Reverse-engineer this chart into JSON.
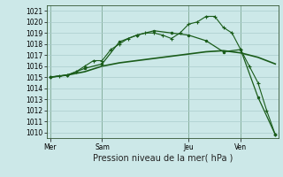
{
  "title": "Pression niveau de la mer( hPa )",
  "bg_color": "#cce8e8",
  "grid_color": "#aacccc",
  "line_color": "#1a5c1a",
  "ylim": [
    1009.5,
    1021.5
  ],
  "yticks": [
    1010,
    1011,
    1012,
    1013,
    1014,
    1015,
    1016,
    1017,
    1018,
    1019,
    1020,
    1021
  ],
  "xlim": [
    -0.2,
    13.2
  ],
  "day_labels": [
    "Mer",
    "Sam",
    "Jeu",
    "Ven"
  ],
  "day_positions": [
    0,
    3,
    8,
    11
  ],
  "line1_x": [
    0,
    0.5,
    1,
    1.5,
    2,
    2.5,
    3,
    3.5,
    4,
    4.5,
    5,
    5.5,
    6,
    6.5,
    7,
    7.5,
    8,
    8.5,
    9,
    9.5,
    10,
    10.5,
    11,
    11.5,
    12,
    12.5,
    13
  ],
  "line1_y": [
    1015.0,
    1015.1,
    1015.2,
    1015.5,
    1016.0,
    1016.5,
    1016.5,
    1017.5,
    1018.0,
    1018.5,
    1018.8,
    1019.0,
    1019.0,
    1018.8,
    1018.5,
    1019.0,
    1019.8,
    1020.0,
    1020.5,
    1020.5,
    1019.5,
    1019.0,
    1017.5,
    1016.0,
    1014.5,
    1012.0,
    1009.8
  ],
  "line2_x": [
    0,
    1,
    2,
    3,
    4,
    5,
    6,
    7,
    8,
    9,
    10,
    11,
    12,
    13
  ],
  "line2_y": [
    1015.0,
    1015.2,
    1015.8,
    1016.2,
    1018.2,
    1018.8,
    1019.2,
    1019.0,
    1018.8,
    1018.3,
    1017.3,
    1017.5,
    1013.2,
    1009.8
  ],
  "line3_x": [
    0,
    1,
    2,
    3,
    4,
    5,
    6,
    7,
    8,
    9,
    10,
    11,
    12,
    13
  ],
  "line3_y": [
    1015.0,
    1015.2,
    1015.5,
    1016.0,
    1016.3,
    1016.5,
    1016.7,
    1016.9,
    1017.1,
    1017.3,
    1017.4,
    1017.2,
    1016.8,
    1016.2
  ],
  "vline_positions": [
    0,
    3,
    8,
    11
  ],
  "tick_fontsize": 5.5,
  "label_fontsize": 7.0
}
